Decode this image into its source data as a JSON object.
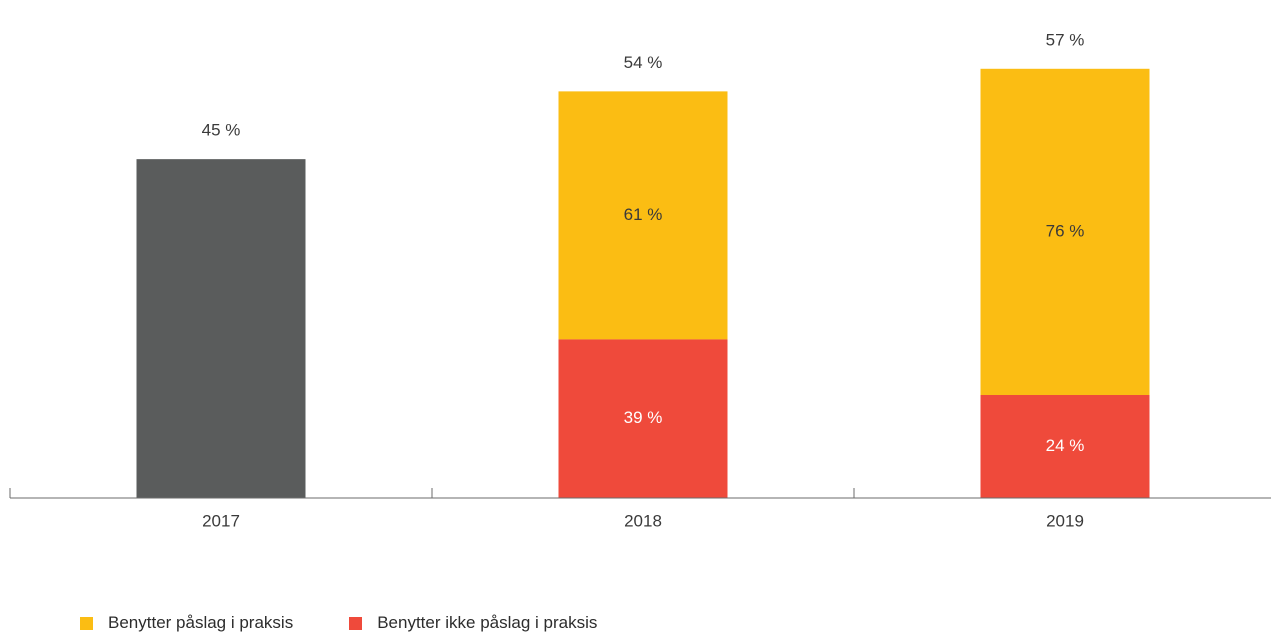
{
  "chart_data": {
    "type": "bar",
    "stacked": true,
    "categories": [
      "2017",
      "2018",
      "2019"
    ],
    "totals": [
      45,
      54,
      57
    ],
    "total_labels": [
      "45 %",
      "54 %",
      "57 %"
    ],
    "unsplit_color": "#5a5c5c",
    "series": [
      {
        "name": "Benytter ikke påslag i praksis",
        "color": "#ef4a3b",
        "share_of_total": [
          null,
          39,
          24
        ],
        "labels": [
          "",
          "39 %",
          "24 %"
        ]
      },
      {
        "name": "Benytter påslag i praksis",
        "color": "#fbbd13",
        "share_of_total": [
          null,
          61,
          76
        ],
        "labels": [
          "",
          "61 %",
          "76 %"
        ]
      }
    ],
    "ylim": [
      0,
      100
    ],
    "grid": false,
    "legend_position": "bottom-left"
  },
  "legend": {
    "items": [
      {
        "label": "Benytter påslag i praksis",
        "color": "#fbbd13"
      },
      {
        "label": "Benytter ikke påslag i praksis",
        "color": "#ef4a3b"
      }
    ]
  }
}
